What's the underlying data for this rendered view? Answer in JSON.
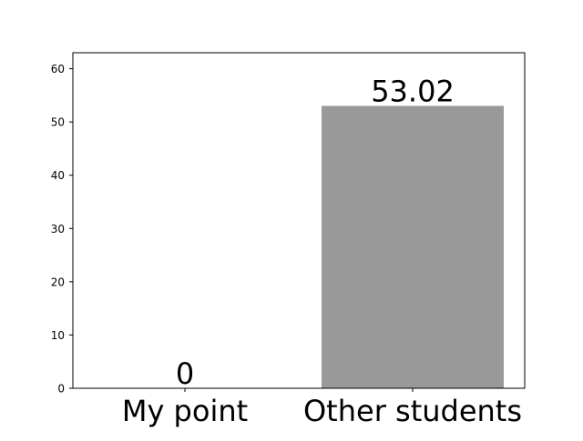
{
  "chart_data": {
    "type": "bar",
    "categories": [
      "My point",
      "Other students"
    ],
    "values": [
      0,
      53.02
    ],
    "value_labels": [
      "0",
      "53.02"
    ],
    "title": "",
    "xlabel": "",
    "ylabel": "",
    "ylim": [
      0,
      63
    ],
    "yticks": [
      0,
      10,
      20,
      30,
      40,
      50,
      60
    ],
    "grid": false,
    "legend": "none",
    "bar_color": "#999999"
  }
}
